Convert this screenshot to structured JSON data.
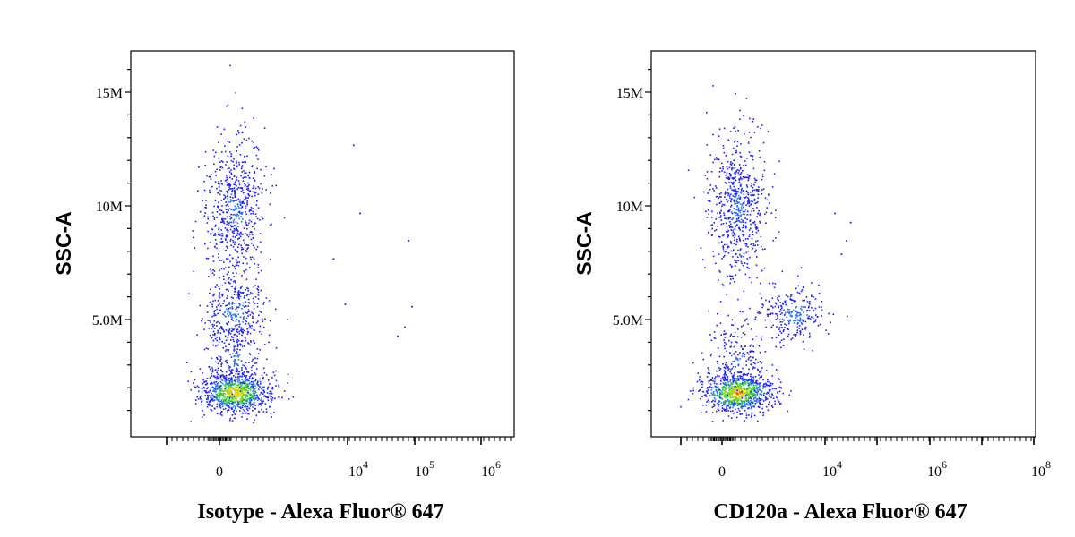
{
  "chart_data": [
    {
      "type": "scatter",
      "ylabel": "SSC-A",
      "xlabel": "Isotype - Alexa Fluor® 647",
      "x_scale": "biexponential",
      "y_ticks": [
        {
          "value": 5000000,
          "label": "5.0M"
        },
        {
          "value": 10000000,
          "label": "10M"
        },
        {
          "value": 15000000,
          "label": "15M"
        }
      ],
      "x_ticks": [
        {
          "label": "0",
          "exp": ""
        },
        {
          "label": "10",
          "exp": "4"
        },
        {
          "label": "10",
          "exp": "5"
        },
        {
          "label": "10",
          "exp": "6"
        }
      ],
      "populations": [
        {
          "x_center": 0,
          "y_center": 1800000,
          "y_spread": 450000,
          "n": 900,
          "density": "high"
        },
        {
          "x_center": 0,
          "y_center": 5300000,
          "y_spread": 800000,
          "n": 300,
          "density": "medium"
        },
        {
          "x_center": 0,
          "y_center": 9800000,
          "y_spread": 1700000,
          "n": 650,
          "density": "low"
        },
        {
          "x_center": 0,
          "y_center": 3300000,
          "y_spread": 1000000,
          "n": 200,
          "density": "low"
        }
      ],
      "outliers": [
        {
          "x": 12000,
          "y": 12700000
        },
        {
          "x": 15000,
          "y": 9700000
        },
        {
          "x": 80000,
          "y": 8500000
        },
        {
          "x": 6000,
          "y": 7700000
        },
        {
          "x": 9000,
          "y": 5700000
        },
        {
          "x": 90000,
          "y": 5600000
        },
        {
          "x": 70000,
          "y": 4700000
        },
        {
          "x": 55000,
          "y": 4300000
        }
      ]
    },
    {
      "type": "scatter",
      "ylabel": "SSC-A",
      "xlabel": "CD120a - Alexa Fluor® 647",
      "x_scale": "biexponential",
      "y_ticks": [
        {
          "value": 5000000,
          "label": "5.0M"
        },
        {
          "value": 10000000,
          "label": "10M"
        },
        {
          "value": 15000000,
          "label": "15M"
        }
      ],
      "x_ticks": [
        {
          "label": "0",
          "exp": ""
        },
        {
          "label": "10",
          "exp": "4"
        },
        {
          "label": "10",
          "exp": "6"
        },
        {
          "label": "10",
          "exp": "8"
        }
      ],
      "populations": [
        {
          "x_center": 0,
          "y_center": 1800000,
          "y_spread": 450000,
          "n": 900,
          "density": "high"
        },
        {
          "x_center": 2500,
          "y_center": 5300000,
          "y_spread": 600000,
          "n": 260,
          "density": "medium"
        },
        {
          "x_center": 0,
          "y_center": 10000000,
          "y_spread": 1700000,
          "n": 650,
          "density": "low"
        },
        {
          "x_center": 0,
          "y_center": 3300000,
          "y_spread": 1000000,
          "n": 200,
          "density": "low"
        }
      ],
      "outliers": [
        {
          "x": 15000,
          "y": 9700000
        },
        {
          "x": 30000,
          "y": 9300000
        },
        {
          "x": 25000,
          "y": 8500000
        },
        {
          "x": 20000,
          "y": 7900000
        }
      ]
    }
  ],
  "colors": {
    "low": "#1c1cff",
    "low2": "#2a6bff",
    "mid": "#28c838",
    "mid2": "#9ad820",
    "high": "#ffd000",
    "peak": "#ff5a00",
    "peak2": "#d01818",
    "axis": "#000000"
  }
}
